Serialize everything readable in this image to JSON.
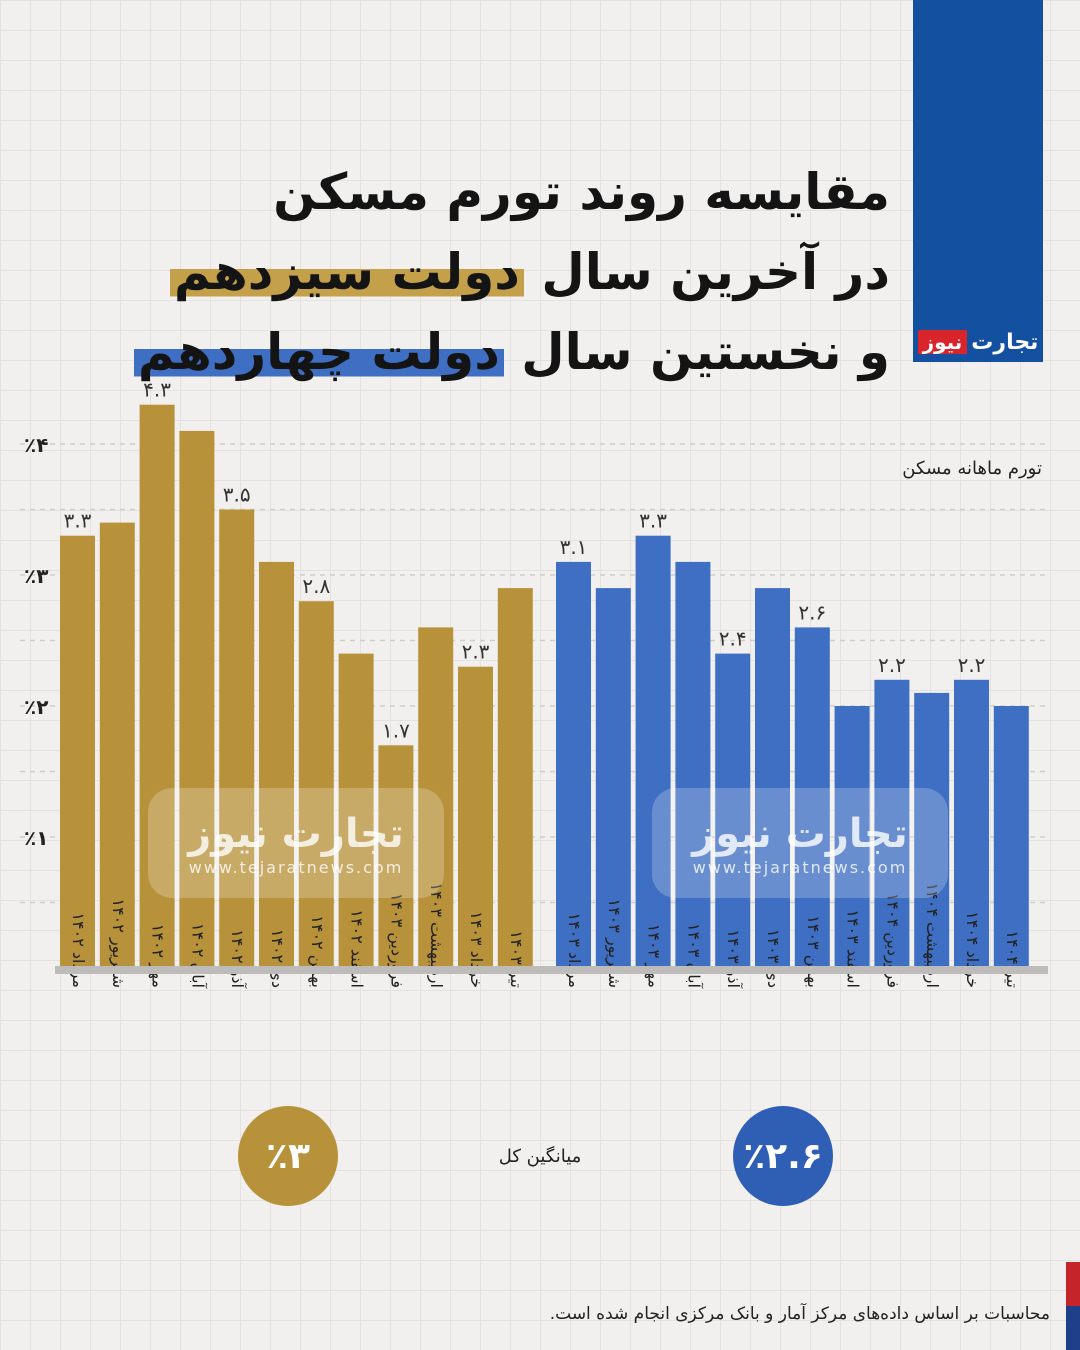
{
  "header": {
    "title_line1": "مقایسه روند تورم مسکن",
    "title_line2_pre": "در آخرین سال ",
    "title_line2_hl": "دولت سیزدهم",
    "title_line3_pre": "و نخستین سال ",
    "title_line3_hl": "دولت چهاردهم"
  },
  "brand": {
    "part1": "تجارت",
    "part2": "نیوز"
  },
  "watermark": {
    "text": "تجارت نیوز",
    "url": "www.tejaratnews.com"
  },
  "colors": {
    "gold": "#b8923a",
    "blue": "#3f6fc2",
    "brand_blue": "#1450a0",
    "brand_red": "#d8242b"
  },
  "chart_data": {
    "type": "bar",
    "series_label": "تورم ماهانه مسکن",
    "ylim": [
      0,
      4.4
    ],
    "y_ticks": [
      {
        "value": 1,
        "label": "٪۱"
      },
      {
        "value": 2,
        "label": "٪۲"
      },
      {
        "value": 3,
        "label": "٪۳"
      },
      {
        "value": 4,
        "label": "٪۴"
      }
    ],
    "grid": true,
    "groups": [
      {
        "color": "#b8923a",
        "categories": [
          "مرداد ۱۴۰۲",
          "شهریور ۱۴۰۲",
          "مهر ۱۴۰۲",
          "آبان ۱۴۰۲",
          "آذر ۱۴۰۲",
          "دی ۱۴۰۲",
          "بهمن ۱۴۰۲",
          "اسفند ۱۴۰۲",
          "فروردین ۱۴۰۳",
          "اردیبهشت ۱۴۰۳",
          "خرداد ۱۴۰۳",
          "تیر ۱۴۰۳"
        ],
        "values": [
          3.3,
          3.4,
          4.3,
          4.1,
          3.5,
          3.1,
          2.8,
          2.4,
          1.7,
          2.6,
          2.3,
          2.9
        ],
        "labels": [
          "۳.۳",
          "",
          "۴.۳",
          "",
          "۳.۵",
          "",
          "۲.۸",
          "",
          "۱.۷",
          "",
          "۲.۳",
          ""
        ]
      },
      {
        "color": "#3f6fc2",
        "categories": [
          "مرداد ۱۴۰۳",
          "شهریور ۱۴۰۳",
          "مهر ۱۴۰۳",
          "آبان ۱۴۰۳",
          "آذر ۱۴۰۳",
          "دی ۱۴۰۳",
          "بهمن ۱۴۰۳",
          "اسفند ۱۴۰۳",
          "فروردین ۱۴۰۴",
          "اردیبهشت ۱۴۰۴",
          "خرداد ۱۴۰۴",
          "تیر ۱۴۰۴"
        ],
        "values": [
          3.1,
          2.9,
          3.3,
          3.1,
          2.4,
          2.9,
          2.6,
          2.0,
          2.2,
          2.1,
          2.2,
          2.0
        ],
        "labels": [
          "۳.۱",
          "",
          "۳.۳",
          "",
          "۲.۴",
          "",
          "۲.۶",
          "",
          "۲.۲",
          "",
          "۲.۲",
          ""
        ]
      }
    ]
  },
  "average": {
    "label": "میانگین کل",
    "gold_value": "٪۳",
    "blue_value": "٪۲.۶"
  },
  "footnote": "محاسبات بر اساس داده‌های مرکز آمار و بانک مرکزی انجام شده است."
}
